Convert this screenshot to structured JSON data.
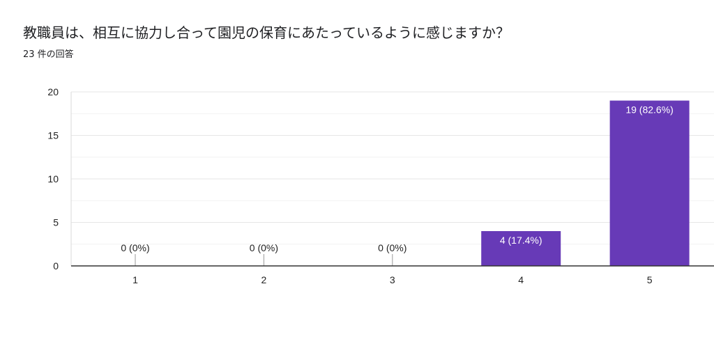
{
  "title": "教職員は、相互に協力し合って園児の保育にあたっているように感じますか？",
  "response_count": "23 件の回答",
  "colors": {
    "bar": "#673ab7",
    "bar_label_inside": "#ffffff",
    "bar_label_outside": "#222222",
    "grid": "#e6e6e6",
    "axis": "#333333"
  },
  "chart_data": {
    "type": "bar",
    "categories": [
      "1",
      "2",
      "3",
      "4",
      "5"
    ],
    "values": [
      0,
      0,
      0,
      4,
      19
    ],
    "data_labels": [
      "0 (0%)",
      "0 (0%)",
      "0 (0%)",
      "4 (17.4%)",
      "19 (82.6%)"
    ],
    "ylim": [
      0,
      20
    ],
    "yticks": [
      0,
      5,
      10,
      15,
      20
    ],
    "xlabel": "",
    "ylabel": "",
    "grid": true,
    "legend": "none"
  }
}
